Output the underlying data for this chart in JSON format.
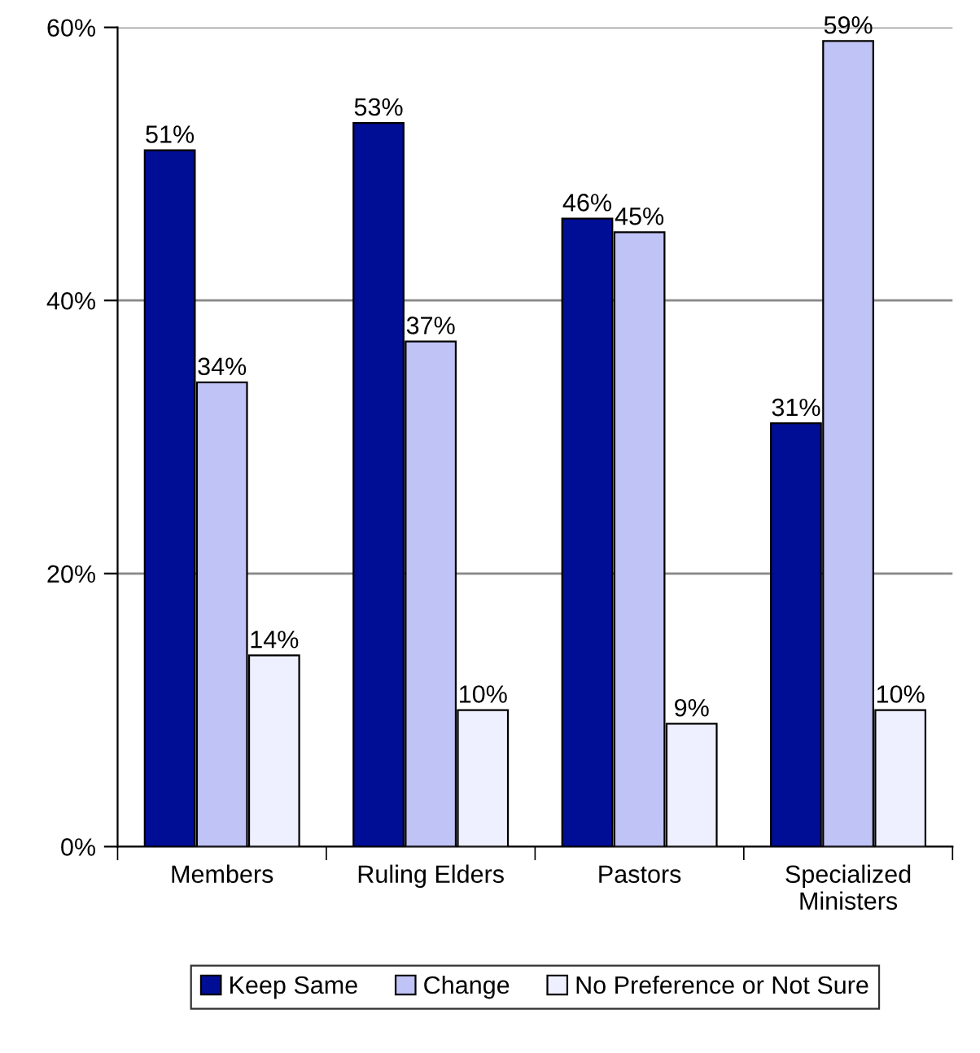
{
  "chart_data": {
    "type": "bar",
    "categories": [
      "Members",
      "Ruling Elders",
      "Pastors",
      "Specialized\nMinisters"
    ],
    "series": [
      {
        "name": "Keep Same",
        "color": "#000e96",
        "values": [
          51,
          53,
          46,
          31
        ],
        "value_labels": [
          "51%",
          "53%",
          "46%",
          "31%"
        ]
      },
      {
        "name": "Change",
        "color": "#c0c3f5",
        "values": [
          34,
          37,
          45,
          59
        ],
        "value_labels": [
          "34%",
          "37%",
          "45%",
          "59%"
        ]
      },
      {
        "name": "No Preference or Not Sure",
        "color": "#eef0ff",
        "values": [
          14,
          10,
          9,
          10
        ],
        "value_labels": [
          "14%",
          "10%",
          "9%",
          "10%"
        ]
      }
    ],
    "ylim": [
      0,
      60
    ],
    "yticks": [
      {
        "value": 0,
        "label": "0%"
      },
      {
        "value": 20,
        "label": "20%"
      },
      {
        "value": 40,
        "label": "40%"
      },
      {
        "value": 60,
        "label": "60%"
      }
    ],
    "grid": "y",
    "legend": "bottom"
  }
}
